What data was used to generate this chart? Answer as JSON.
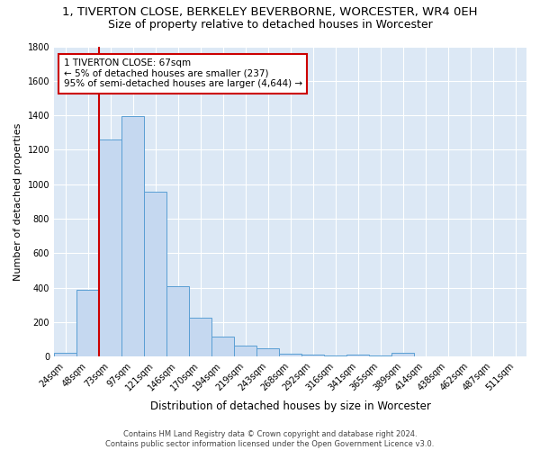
{
  "title": "1, TIVERTON CLOSE, BERKELEY BEVERBORNE, WORCESTER, WR4 0EH",
  "subtitle": "Size of property relative to detached houses in Worcester",
  "xlabel": "Distribution of detached houses by size in Worcester",
  "ylabel": "Number of detached properties",
  "categories": [
    "24sqm",
    "48sqm",
    "73sqm",
    "97sqm",
    "121sqm",
    "146sqm",
    "170sqm",
    "194sqm",
    "219sqm",
    "243sqm",
    "268sqm",
    "292sqm",
    "316sqm",
    "341sqm",
    "365sqm",
    "389sqm",
    "414sqm",
    "438sqm",
    "462sqm",
    "487sqm",
    "511sqm"
  ],
  "values": [
    25,
    390,
    1260,
    1395,
    955,
    410,
    228,
    115,
    65,
    50,
    18,
    12,
    8,
    15,
    5,
    22,
    0,
    0,
    0,
    0,
    0
  ],
  "bar_color": "#c5d8f0",
  "bar_edge_color": "#5a9fd4",
  "vline_x_index": 1.5,
  "vline_color": "#cc0000",
  "annotation_text": "1 TIVERTON CLOSE: 67sqm\n← 5% of detached houses are smaller (237)\n95% of semi-detached houses are larger (4,644) →",
  "annotation_box_color": "#ffffff",
  "annotation_box_edge_color": "#cc0000",
  "bg_color": "#dce8f5",
  "grid_color": "#c0cfe0",
  "footer": "Contains HM Land Registry data © Crown copyright and database right 2024.\nContains public sector information licensed under the Open Government Licence v3.0.",
  "ylim": [
    0,
    1800
  ],
  "yticks": [
    0,
    200,
    400,
    600,
    800,
    1000,
    1200,
    1400,
    1600,
    1800
  ],
  "title_fontsize": 9.5,
  "subtitle_fontsize": 9,
  "xlabel_fontsize": 8.5,
  "ylabel_fontsize": 8,
  "tick_fontsize": 7,
  "ann_fontsize": 7.5,
  "footer_fontsize": 6
}
